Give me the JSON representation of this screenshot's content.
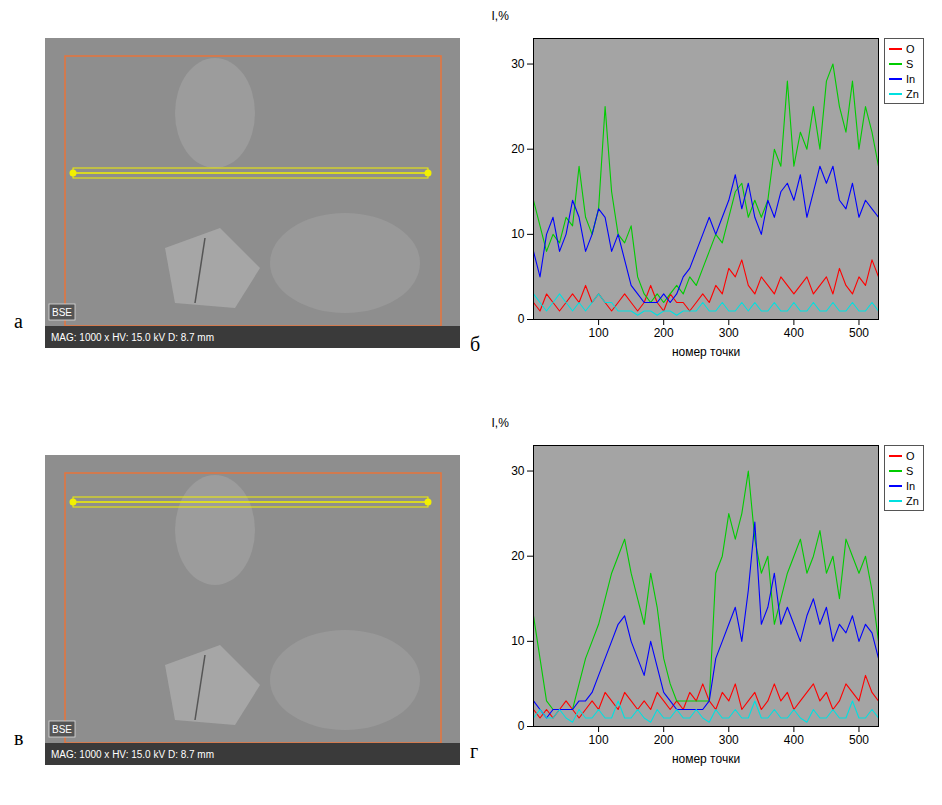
{
  "images": [
    {
      "panel_label": "а",
      "overlay": "BSE",
      "caption": "MAG: 1000 x  HV: 15.0 kV  D: 8.7 mm"
    },
    {
      "panel_label": "в",
      "overlay": "BSE",
      "caption": "MAG: 1000 x  HV: 15.0 kV  D: 8.7 mm"
    }
  ],
  "chart_data": [
    {
      "type": "line",
      "panel_label": "б",
      "ylabel": "I,%",
      "xlabel": "номер точки",
      "x": [
        0,
        10,
        20,
        30,
        40,
        50,
        60,
        70,
        80,
        90,
        100,
        110,
        120,
        130,
        140,
        150,
        160,
        170,
        180,
        190,
        200,
        210,
        220,
        230,
        240,
        250,
        260,
        270,
        280,
        290,
        300,
        310,
        320,
        330,
        340,
        350,
        360,
        370,
        380,
        390,
        400,
        410,
        420,
        430,
        440,
        450,
        460,
        470,
        480,
        490,
        500,
        510,
        520,
        530
      ],
      "xlim": [
        0,
        530
      ],
      "xticks": [
        100,
        200,
        300,
        400,
        500
      ],
      "ylim": [
        0,
        33
      ],
      "yticks": [
        0,
        10,
        20,
        30
      ],
      "legend": "right",
      "series": [
        {
          "name": "O",
          "color": "#ff0000",
          "values": [
            2,
            1,
            3,
            2,
            1,
            2,
            3,
            2,
            4,
            2,
            3,
            2,
            1,
            2,
            3,
            2,
            1,
            2,
            4,
            2,
            1,
            3,
            2,
            2,
            1,
            2,
            3,
            2,
            4,
            3,
            6,
            5,
            7,
            4,
            3,
            5,
            4,
            3,
            5,
            4,
            3,
            4,
            5,
            3,
            4,
            5,
            3,
            6,
            4,
            3,
            5,
            4,
            7,
            5
          ]
        },
        {
          "name": "S",
          "color": "#00cc00",
          "values": [
            14,
            11,
            8,
            10,
            9,
            12,
            11,
            18,
            12,
            10,
            13,
            25,
            15,
            10,
            9,
            11,
            5,
            3,
            2,
            3,
            2,
            3,
            4,
            3,
            5,
            4,
            6,
            8,
            10,
            9,
            12,
            15,
            16,
            12,
            14,
            12,
            14,
            20,
            18,
            28,
            18,
            22,
            20,
            25,
            20,
            28,
            30,
            25,
            22,
            28,
            20,
            25,
            22,
            18
          ]
        },
        {
          "name": "In",
          "color": "#0000ff",
          "values": [
            8,
            5,
            10,
            12,
            8,
            10,
            14,
            12,
            8,
            10,
            13,
            12,
            8,
            10,
            7,
            4,
            3,
            2,
            2,
            2,
            3,
            2,
            3,
            5,
            6,
            8,
            10,
            12,
            10,
            12,
            14,
            17,
            13,
            16,
            12,
            10,
            14,
            12,
            15,
            16,
            14,
            17,
            12,
            15,
            18,
            16,
            18,
            14,
            13,
            16,
            12,
            14,
            13,
            12
          ]
        },
        {
          "name": "Zn",
          "color": "#00e0e0",
          "values": [
            3,
            2,
            1,
            2,
            3,
            2,
            1,
            2,
            1,
            2,
            3,
            2,
            2,
            1,
            1,
            1,
            0.5,
            1,
            1,
            0.5,
            1,
            1,
            0.5,
            1,
            1,
            1,
            2,
            1,
            1,
            2,
            1,
            1,
            2,
            1,
            2,
            1,
            1,
            2,
            1,
            1,
            2,
            1,
            1,
            2,
            1,
            1,
            2,
            1,
            1,
            2,
            1,
            1,
            2,
            1
          ]
        }
      ]
    },
    {
      "type": "line",
      "panel_label": "г",
      "ylabel": "I,%",
      "xlabel": "номер точки",
      "x": [
        0,
        10,
        20,
        30,
        40,
        50,
        60,
        70,
        80,
        90,
        100,
        110,
        120,
        130,
        140,
        150,
        160,
        170,
        180,
        190,
        200,
        210,
        220,
        230,
        240,
        250,
        260,
        270,
        280,
        290,
        300,
        310,
        320,
        330,
        340,
        350,
        360,
        370,
        380,
        390,
        400,
        410,
        420,
        430,
        440,
        450,
        460,
        470,
        480,
        490,
        500,
        510,
        520,
        530
      ],
      "xlim": [
        0,
        530
      ],
      "xticks": [
        100,
        200,
        300,
        400,
        500
      ],
      "ylim": [
        0,
        33
      ],
      "yticks": [
        0,
        10,
        20,
        30
      ],
      "legend": "right",
      "series": [
        {
          "name": "O",
          "color": "#ff0000",
          "values": [
            2,
            1,
            2,
            1,
            2,
            3,
            2,
            1,
            2,
            3,
            2,
            4,
            3,
            2,
            4,
            3,
            2,
            3,
            2,
            4,
            3,
            2,
            3,
            2,
            4,
            3,
            5,
            3,
            2,
            4,
            3,
            5,
            2,
            3,
            4,
            2,
            3,
            5,
            3,
            4,
            2,
            3,
            4,
            5,
            3,
            4,
            2,
            3,
            5,
            4,
            3,
            6,
            4,
            3
          ]
        },
        {
          "name": "S",
          "color": "#00cc00",
          "values": [
            13,
            8,
            3,
            2,
            2,
            2,
            2,
            5,
            8,
            10,
            12,
            15,
            18,
            20,
            22,
            18,
            15,
            12,
            18,
            14,
            8,
            5,
            3,
            3,
            3,
            3,
            3,
            3,
            18,
            20,
            25,
            22,
            25,
            30,
            22,
            18,
            20,
            12,
            15,
            18,
            20,
            22,
            18,
            20,
            23,
            18,
            20,
            15,
            22,
            20,
            18,
            20,
            16,
            10
          ]
        },
        {
          "name": "In",
          "color": "#0000ff",
          "values": [
            3,
            2,
            1,
            2,
            2,
            2,
            2,
            3,
            3,
            4,
            6,
            8,
            10,
            12,
            13,
            10,
            8,
            6,
            10,
            7,
            4,
            3,
            2,
            2,
            2,
            2,
            2,
            3,
            8,
            10,
            12,
            14,
            10,
            16,
            24,
            12,
            14,
            18,
            12,
            14,
            12,
            10,
            13,
            15,
            12,
            14,
            10,
            12,
            11,
            13,
            10,
            12,
            11,
            8
          ]
        },
        {
          "name": "Zn",
          "color": "#00e0e0",
          "values": [
            1,
            2,
            1,
            1,
            2,
            1,
            0.5,
            2,
            1,
            1,
            2,
            1,
            1,
            3,
            1,
            1,
            2,
            1,
            0.5,
            2,
            1,
            1,
            2,
            1,
            1,
            2,
            1,
            0.5,
            2,
            1,
            1,
            2,
            1,
            1,
            3,
            1,
            1,
            2,
            1,
            1,
            2,
            1,
            0.5,
            2,
            1,
            1,
            2,
            1,
            1,
            3,
            1,
            1,
            2,
            1
          ]
        }
      ]
    }
  ]
}
